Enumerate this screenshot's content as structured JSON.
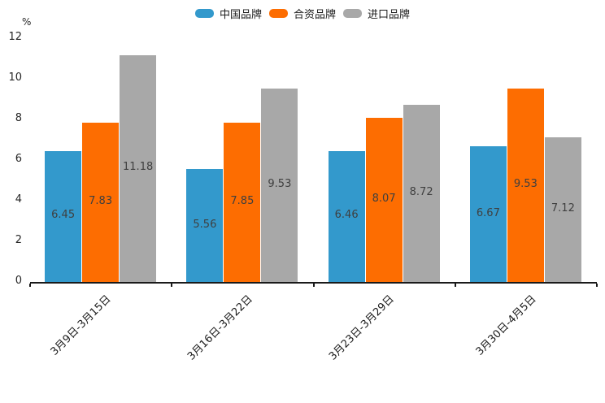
{
  "chart_data": {
    "type": "bar",
    "title": "",
    "unit_label": "%",
    "xlabel": "",
    "ylabel": "%",
    "categories": [
      "3月9日-3月15日",
      "3月16日-3月22日",
      "3月23日-3月29日",
      "3月30日-4月5日"
    ],
    "series": [
      {
        "name": "中国品牌",
        "color": "#3399CC",
        "values": [
          6.45,
          5.56,
          6.46,
          6.67
        ]
      },
      {
        "name": "合资品牌",
        "color": "#FD6D01",
        "values": [
          7.83,
          7.85,
          8.07,
          9.53
        ]
      },
      {
        "name": "进口品牌",
        "color": "#A8A8A8",
        "values": [
          11.18,
          9.53,
          8.72,
          7.12
        ]
      }
    ],
    "ylim": [
      0,
      12
    ],
    "yticks": [
      0,
      2,
      4,
      6,
      8,
      10,
      12
    ],
    "legend_position": "top-center",
    "grid": false,
    "value_labels_shown": true,
    "axis_color": "#1a1a1a",
    "label_color": "#3f3f3f"
  }
}
